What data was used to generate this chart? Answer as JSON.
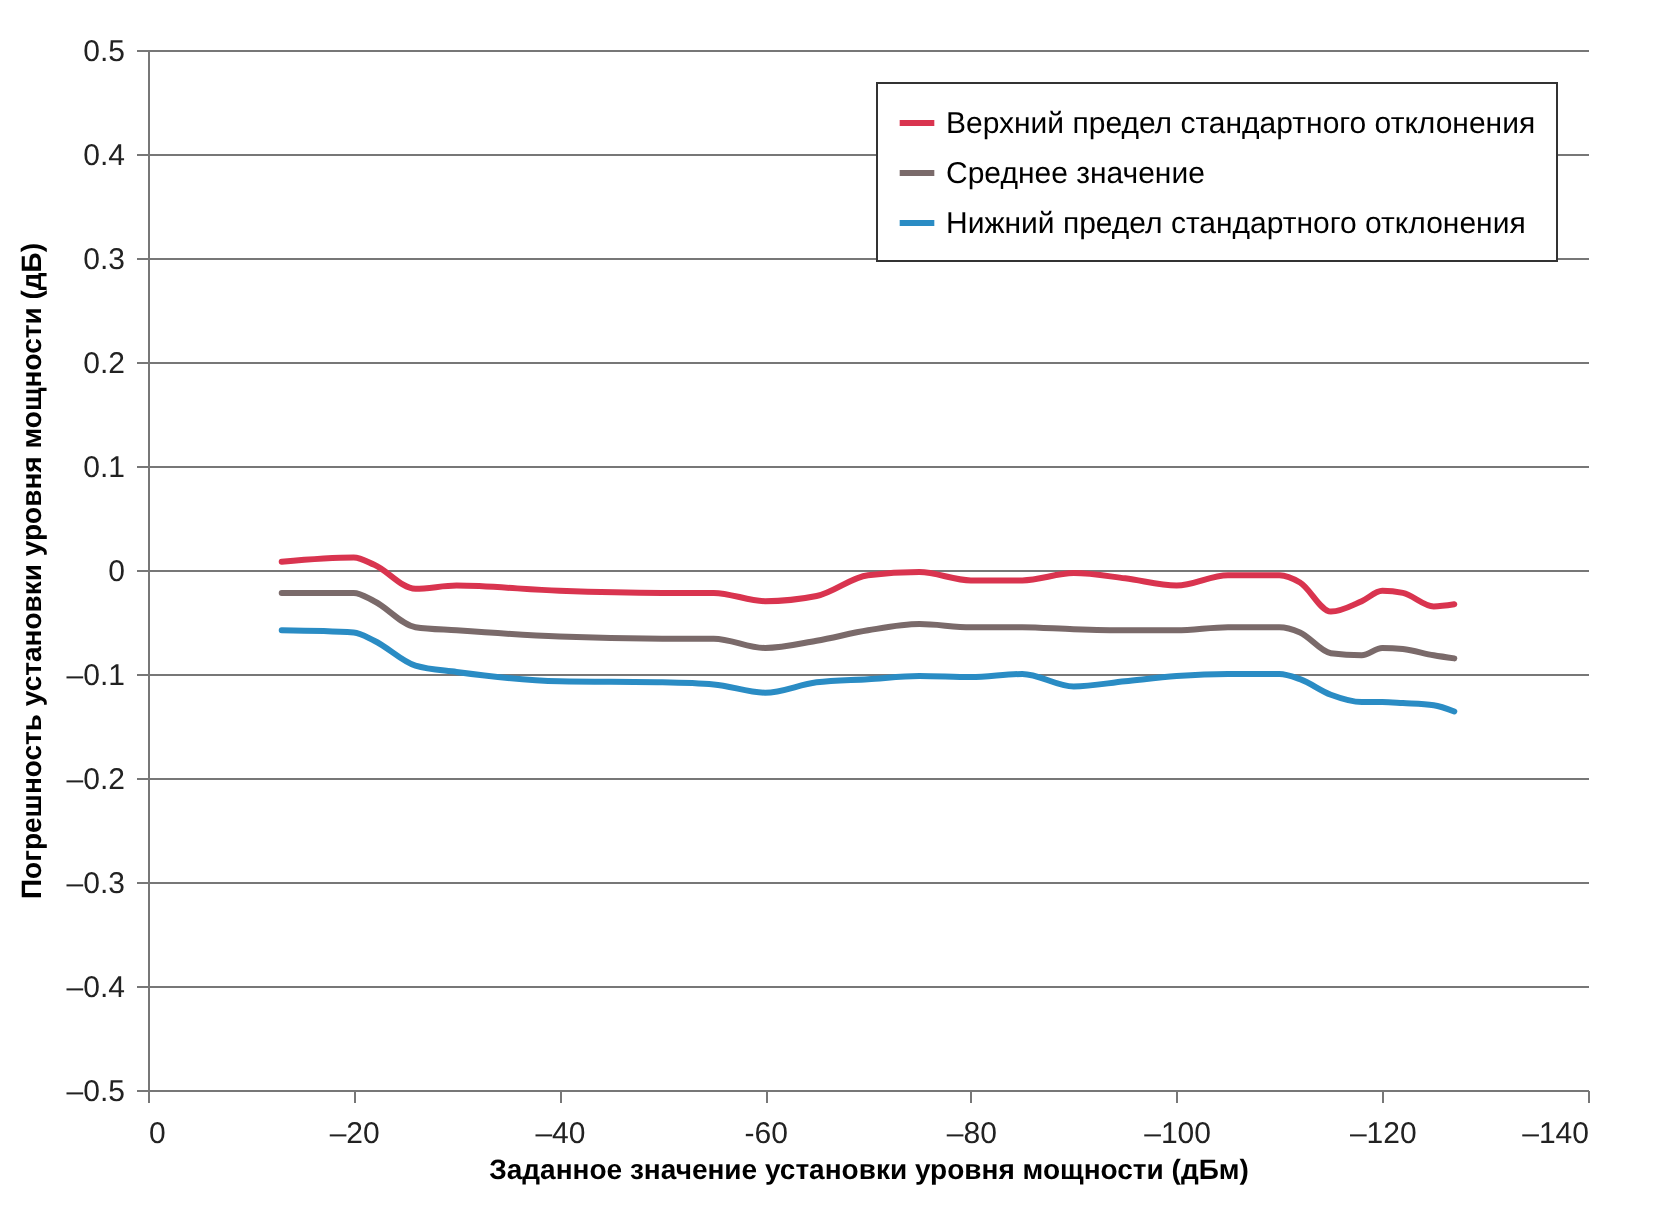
{
  "chart_data": {
    "type": "line",
    "xlabel": "Заданное значение установки уровня мощности (дБм)",
    "ylabel": "Погрешность установки уровня мощности (дБ)",
    "xlim": [
      0,
      -140
    ],
    "xticks": [
      0,
      {
        "value": -20,
        "label": "–20"
      },
      {
        "value": -40,
        "label": "–40"
      },
      {
        "value": -60,
        "label": "-60"
      },
      {
        "value": -80,
        "label": "–80"
      },
      {
        "value": -100,
        "label": "–100"
      },
      {
        "value": -120,
        "label": "–120"
      },
      {
        "value": -140,
        "label": "–140"
      }
    ],
    "ylim": [
      -0.5,
      0.5
    ],
    "yticks": [
      {
        "value": -0.5,
        "label": "–0.5"
      },
      {
        "value": -0.4,
        "label": "–0.4"
      },
      {
        "value": -0.3,
        "label": "–0.3"
      },
      {
        "value": -0.2,
        "label": "–0.2"
      },
      {
        "value": -0.1,
        "label": "–0.1"
      },
      0,
      0.1,
      0.2,
      0.3,
      0.4,
      0.5
    ],
    "grid": "y",
    "legend": "top right",
    "line_style": "solid",
    "x": [
      -13,
      -20,
      -22,
      -26,
      -30,
      -40,
      -50,
      -55,
      -60,
      -65,
      -70,
      -75,
      -80,
      -85,
      -90,
      -95,
      -100,
      -105,
      -110,
      -112,
      -115,
      -118,
      -120,
      -122,
      -125,
      -127
    ],
    "series": [
      {
        "name": "Верхний предел стандартного отклонения",
        "color": "#d9344f",
        "values": [
          0.008,
          0.012,
          0.005,
          -0.018,
          -0.015,
          -0.02,
          -0.022,
          -0.022,
          -0.03,
          -0.025,
          -0.005,
          -0.002,
          -0.01,
          -0.01,
          -0.003,
          -0.008,
          -0.015,
          -0.005,
          -0.005,
          -0.012,
          -0.04,
          -0.03,
          -0.02,
          -0.022,
          -0.035,
          -0.033
        ]
      },
      {
        "name": "Среднее значение",
        "color": "#7a6a6a",
        "values": [
          -0.022,
          -0.022,
          -0.03,
          -0.055,
          -0.058,
          -0.064,
          -0.066,
          -0.066,
          -0.075,
          -0.068,
          -0.058,
          -0.052,
          -0.055,
          -0.055,
          -0.057,
          -0.058,
          -0.058,
          -0.055,
          -0.055,
          -0.06,
          -0.08,
          -0.082,
          -0.075,
          -0.076,
          -0.082,
          -0.085
        ]
      },
      {
        "name": "Нижний предел стандартного отклонения",
        "color": "#2a8cc4",
        "values": [
          -0.058,
          -0.06,
          -0.068,
          -0.092,
          -0.098,
          -0.107,
          -0.108,
          -0.11,
          -0.118,
          -0.108,
          -0.105,
          -0.102,
          -0.103,
          -0.1,
          -0.112,
          -0.107,
          -0.102,
          -0.1,
          -0.1,
          -0.105,
          -0.12,
          -0.127,
          -0.127,
          -0.128,
          -0.13,
          -0.136
        ]
      }
    ]
  }
}
